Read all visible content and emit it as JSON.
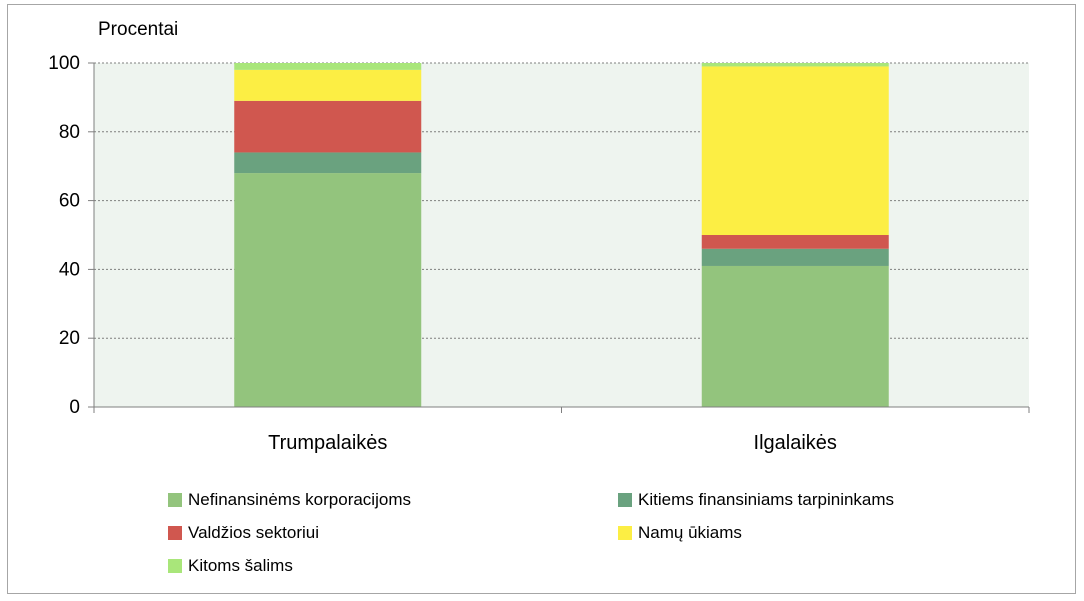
{
  "chart_data": {
    "type": "bar",
    "stacked": true,
    "ylabel": "Procentai",
    "ylim": [
      0,
      100
    ],
    "yticks": [
      0,
      20,
      40,
      60,
      80,
      100
    ],
    "grid": true,
    "legend_position": "bottom",
    "categories": [
      "Trumpalaikės",
      "Ilgalaikės"
    ],
    "series": [
      {
        "name": "Nefinansinėms korporacijoms",
        "color": "#93c47d",
        "values": [
          68,
          41
        ]
      },
      {
        "name": "Kitiems finansiniams tarpininkams",
        "color": "#6aa27f",
        "values": [
          6,
          5
        ]
      },
      {
        "name": "Valdžios sektoriui",
        "color": "#d0574f",
        "values": [
          15,
          4
        ]
      },
      {
        "name": "Namų ūkiams",
        "color": "#fcee44",
        "values": [
          9,
          49
        ]
      },
      {
        "name": "Kitoms šalims",
        "color": "#a9e67a",
        "values": [
          2,
          1
        ]
      }
    ]
  }
}
